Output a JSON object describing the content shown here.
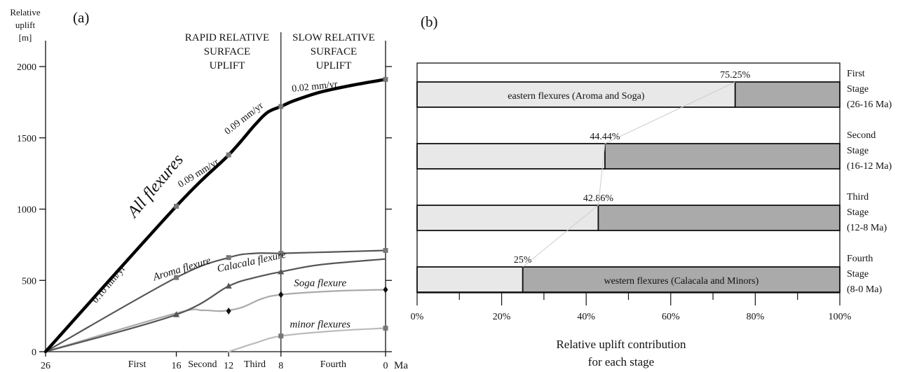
{
  "panel_a": {
    "label": "(a)",
    "y_label_lines": [
      "Relative",
      "uplift",
      "[m]"
    ],
    "x_unit": "Ma",
    "phase_rapid_lines": [
      "RAPID RELATIVE",
      "SURFACE",
      "UPLIFT"
    ],
    "phase_slow_lines": [
      "SLOW RELATIVE",
      "SURFACE",
      "UPLIFT"
    ],
    "stage_labels": [
      {
        "text": "First",
        "x": 19
      },
      {
        "text": "Second",
        "x": 14
      },
      {
        "text": "Third",
        "x": 10
      },
      {
        "text": "Fourth",
        "x": 4
      }
    ],
    "rate_labels": [
      {
        "text": "0.10 mm/yr",
        "x": 21,
        "y": 460,
        "angle": -50
      },
      {
        "text": "0.09 mm/yr",
        "x": 14.2,
        "y": 1235,
        "angle": -32
      },
      {
        "text": "0.09 mm/yr",
        "x": 10.7,
        "y": 1620,
        "angle": -38
      },
      {
        "text": "0.02 mm/yr",
        "x": 5.4,
        "y": 1840,
        "angle": -6
      }
    ],
    "series_labels": [
      {
        "text": "All flexures",
        "x": 17.3,
        "y": 1140,
        "angle": -50,
        "size": 24
      },
      {
        "text": "Aroma flexure",
        "x": 15.5,
        "y": 560,
        "angle": -17,
        "size": 15
      },
      {
        "text": "Calacala flexure",
        "x": 10.2,
        "y": 610,
        "angle": -12,
        "size": 15
      },
      {
        "text": "Soga flexure",
        "x": 5.0,
        "y": 460,
        "angle": 0,
        "size": 15
      },
      {
        "text": "minor flexures",
        "x": 5.0,
        "y": 170,
        "angle": 0,
        "size": 15
      }
    ]
  },
  "panel_b": {
    "label": "(b)",
    "x_label_lines": [
      "Relative uplift contribution",
      "for each stage"
    ],
    "eastern_label": "eastern flexures (Aroma and Soga)",
    "western_label": "western flexures (Calacala and Minors)"
  },
  "chart_data": [
    {
      "type": "line",
      "xlabel": "Ma",
      "ylabel": "Relative uplift [m]",
      "xlim": [
        26,
        0
      ],
      "ylim": [
        0,
        2000
      ],
      "x_ticks": [
        "26",
        "16",
        "12",
        "8",
        "0"
      ],
      "y_ticks": [
        "0",
        "500",
        "1000",
        "1500",
        "2000"
      ],
      "phase_boundary_x": 8,
      "series": [
        {
          "name": "All flexures",
          "color": "#000000",
          "width": 4.5,
          "points": [
            [
              26,
              0
            ],
            [
              16,
              1020
            ],
            [
              12,
              1380
            ],
            [
              10,
              1590
            ],
            [
              9,
              1680
            ],
            [
              8,
              1720
            ],
            [
              7,
              1760
            ],
            [
              5,
              1820
            ],
            [
              2.5,
              1870
            ],
            [
              0,
              1910
            ]
          ],
          "markers": [
            [
              16,
              1020
            ],
            [
              12,
              1380
            ],
            [
              8,
              1720
            ],
            [
              0,
              1910
            ]
          ],
          "marker": "square"
        },
        {
          "name": "Aroma flexure",
          "color": "#555555",
          "width": 2.2,
          "points": [
            [
              26,
              0
            ],
            [
              16,
              520
            ],
            [
              12,
              660
            ],
            [
              10,
              690
            ],
            [
              8,
              690
            ],
            [
              4,
              700
            ],
            [
              0,
              710
            ]
          ],
          "markers": [
            [
              16,
              520
            ],
            [
              12,
              660
            ],
            [
              8,
              690
            ],
            [
              0,
              710
            ]
          ],
          "marker": "square"
        },
        {
          "name": "Calacala flexure",
          "color": "#555555",
          "width": 2.2,
          "points": [
            [
              26,
              0
            ],
            [
              16,
              260
            ],
            [
              12,
              460
            ],
            [
              10,
              520
            ],
            [
              8,
              560
            ],
            [
              5,
              610
            ],
            [
              0,
              650
            ]
          ],
          "markers": [
            [
              16,
              260
            ],
            [
              12,
              460
            ],
            [
              8,
              560
            ]
          ],
          "marker": "triangle"
        },
        {
          "name": "Soga flexure",
          "color": "#aaaaaa",
          "width": 2.2,
          "points": [
            [
              26,
              0
            ],
            [
              16,
              270
            ],
            [
              14,
              290
            ],
            [
              12.5,
              285
            ],
            [
              11,
              310
            ],
            [
              9.5,
              370
            ],
            [
              8,
              400
            ],
            [
              4,
              425
            ],
            [
              0,
              435
            ]
          ],
          "markers": [
            [
              12,
              285
            ],
            [
              8,
              400
            ],
            [
              0,
              435
            ]
          ],
          "marker": "diamond"
        },
        {
          "name": "minor flexures",
          "color": "#bbbbbb",
          "width": 2.2,
          "points": [
            [
              12,
              0
            ],
            [
              10,
              60
            ],
            [
              8,
              110
            ],
            [
              4,
              145
            ],
            [
              0,
              165
            ]
          ],
          "markers": [
            [
              8,
              110
            ],
            [
              0,
              165
            ]
          ],
          "marker": "square"
        }
      ]
    },
    {
      "type": "bar",
      "orientation": "horizontal",
      "stacked": true,
      "xlabel": "Relative uplift contribution for each stage",
      "xlim": [
        0,
        100
      ],
      "x_ticks": [
        "0%",
        "20%",
        "40%",
        "60%",
        "80%",
        "100%"
      ],
      "categories": [
        {
          "lines": [
            "First",
            "Stage",
            "(26-16 Ma)"
          ]
        },
        {
          "lines": [
            "Second",
            "Stage",
            "(16-12 Ma)"
          ]
        },
        {
          "lines": [
            "Third",
            "Stage",
            "(12-8 Ma)"
          ]
        },
        {
          "lines": [
            "Fourth",
            "Stage",
            "(8-0 Ma)"
          ]
        }
      ],
      "series": [
        {
          "values": [
            75.25,
            44.44,
            42.86,
            25
          ],
          "color": "#e8e8e8"
        },
        {
          "values": [
            24.75,
            55.56,
            57.14,
            75
          ],
          "color": "#aaaaaa"
        }
      ],
      "value_labels": [
        "75.25%",
        "44.44%",
        "42.86%",
        "25%"
      ]
    }
  ]
}
